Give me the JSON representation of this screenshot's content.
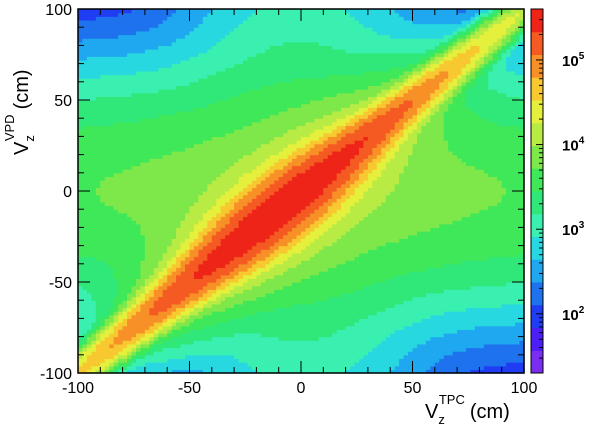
{
  "chart_data": {
    "type": "heatmap",
    "title": "",
    "x_axis": {
      "label_main": "V",
      "label_sub": "z",
      "label_sup": "TPC",
      "label_unit": "(cm)",
      "range": [
        -100,
        100
      ],
      "ticks": [
        -100,
        -50,
        0,
        50,
        100
      ],
      "tick_labels": [
        "-100",
        "-50",
        "0",
        "50",
        "100"
      ]
    },
    "y_axis": {
      "label_main": "V",
      "label_sub": "z",
      "label_sup": "VPD",
      "label_unit": "(cm)",
      "range": [
        -100,
        100
      ],
      "ticks": [
        -100,
        -50,
        0,
        50,
        100
      ],
      "tick_labels": [
        "-100",
        "-50",
        "0",
        "50",
        "100"
      ]
    },
    "z_axis": {
      "scale": "log",
      "range": [
        20,
        400000
      ],
      "labels": [
        {
          "base": "10",
          "exponent": "2",
          "value": 100
        },
        {
          "base": "10",
          "exponent": "3",
          "value": 1000
        },
        {
          "base": "10",
          "exponent": "4",
          "value": 10000
        },
        {
          "base": "10",
          "exponent": "5",
          "value": 100000
        }
      ]
    },
    "palette": [
      "#7a2ef2",
      "#4b1ff5",
      "#1f3df2",
      "#1e72ee",
      "#1fa8ef",
      "#28d8e0",
      "#3af0b0",
      "#30e87a",
      "#3fe858",
      "#7ee84a",
      "#b8ec44",
      "#e5f03c",
      "#f8c830",
      "#f89028",
      "#f45a22",
      "#ee2418"
    ],
    "data": {
      "description_of_structure": "counts vs (V_z^TPC, V_z^VPD); strong diagonal ridge where V_z^VPD = V_z^TPC, peak ~3e5 near (-10,-10); broad horizontal band centered near V_z^VPD = 0",
      "peak_counts": 300000,
      "peak_location": [
        -10,
        -10
      ],
      "diagonal_ridge_counts_at_ends": 10000,
      "band_counts_center": 7000,
      "corner_counts": 60
    }
  }
}
